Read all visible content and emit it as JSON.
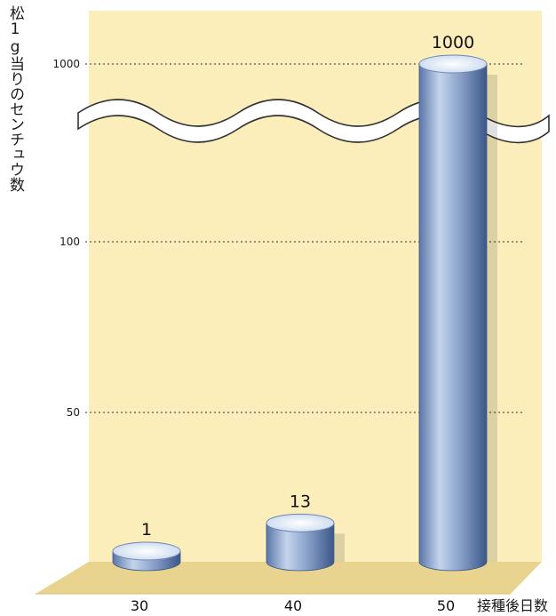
{
  "chart_data": {
    "type": "bar",
    "title": "",
    "ylabel": "松1g当りのセンチュウ数",
    "xlabel": "接種後日数",
    "categories": [
      "30",
      "40",
      "50"
    ],
    "values": [
      1,
      13,
      1000
    ],
    "value_labels": [
      "1",
      "13",
      "1000"
    ],
    "y_ticks": [
      "1000",
      "100",
      "50"
    ],
    "axis_break": true,
    "grid": "dotted",
    "colors": {
      "background": "#fbeebb",
      "floor": "#e6d28c",
      "bar": "#7e97c2",
      "bar_dark": "#3d5a8c",
      "bar_top": "#dbe8f7"
    }
  }
}
